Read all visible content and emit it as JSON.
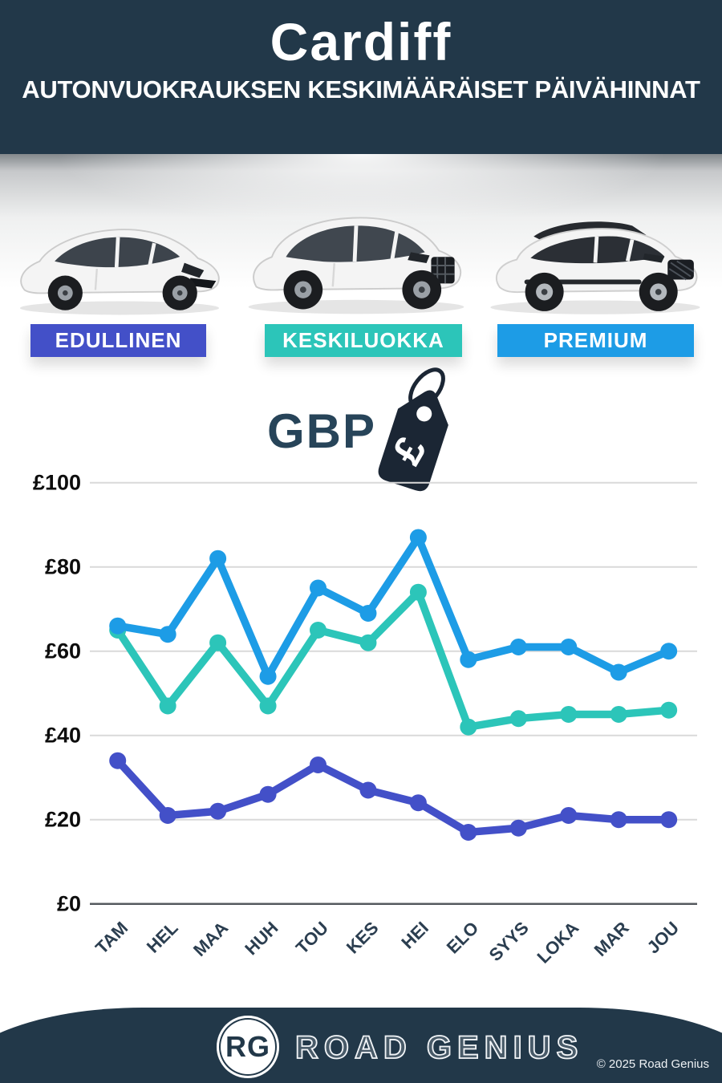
{
  "header": {
    "title": "Cardiff",
    "subtitle": "AUTONVUOKRAUKSEN KESKIMÄÄRÄISET PÄIVÄHINNAT"
  },
  "categories": [
    {
      "label": "EDULLINEN",
      "color": "#4350c8"
    },
    {
      "label": "KESKILUOKKA",
      "color": "#2cc5b9"
    },
    {
      "label": "PREMIUM",
      "color": "#1d9ce6"
    }
  ],
  "cars": [
    {
      "icon": "hatchback-car-image",
      "category": "EDULLINEN"
    },
    {
      "icon": "suv-car-image",
      "category": "KESKILUOKKA"
    },
    {
      "icon": "luxury-suv-car-image",
      "category": "PREMIUM"
    }
  ],
  "currency": {
    "label": "GBP",
    "symbol": "£",
    "tag_icon": "price-tag-icon"
  },
  "chart_data": {
    "type": "line",
    "categories": [
      "TAM",
      "HEL",
      "MAA",
      "HUH",
      "TOU",
      "KES",
      "HEI",
      "ELO",
      "SYYS",
      "LOKA",
      "MAR",
      "JOU"
    ],
    "series": [
      {
        "name": "EDULLINEN",
        "color": "#4350c8",
        "values": [
          34,
          21,
          22,
          26,
          33,
          27,
          24,
          17,
          18,
          21,
          20,
          20
        ]
      },
      {
        "name": "KESKILUOKKA",
        "color": "#2cc5b9",
        "values": [
          65,
          47,
          62,
          47,
          65,
          62,
          74,
          42,
          44,
          45,
          45,
          46
        ]
      },
      {
        "name": "PREMIUM",
        "color": "#1d9ce6",
        "values": [
          66,
          64,
          82,
          54,
          75,
          69,
          87,
          58,
          61,
          61,
          55,
          60
        ]
      }
    ],
    "ylabel_ticks": [
      "£0",
      "£20",
      "£40",
      "£60",
      "£80",
      "£100"
    ],
    "ylim": [
      0,
      100
    ],
    "ytick_step": 20,
    "currency_prefix": "£",
    "grid": true,
    "legend": "none"
  },
  "colors": {
    "header_bg": "#223849",
    "footer_bg": "#223849",
    "tag": "#1b2634",
    "gbp_text": "#274459",
    "gridline": "#d9d9d9",
    "axis_zero_line": "#55595e"
  },
  "footer": {
    "logo_text": "RG",
    "brand": "ROAD GENIUS",
    "copyright": "© 2025 Road Genius"
  }
}
